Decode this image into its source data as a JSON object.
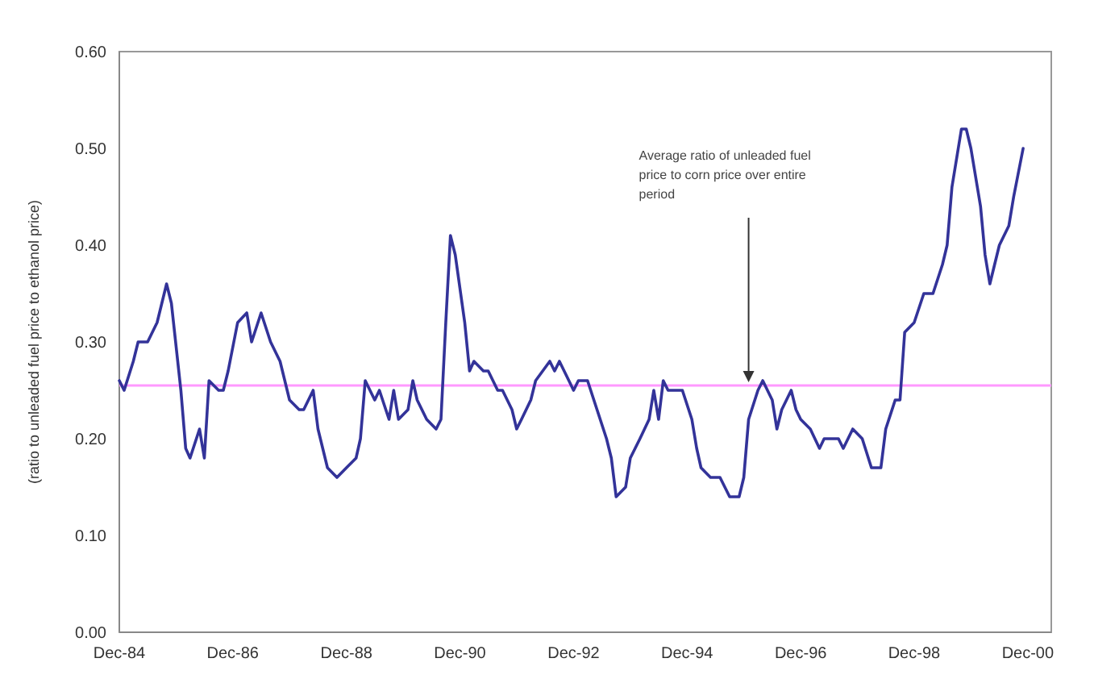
{
  "chart_data": {
    "type": "line",
    "ylabel": "(ratio to unleaded fuel price to ethanol price)",
    "x": [
      "1984-12",
      "1985-01",
      "1985-03",
      "1985-04",
      "1985-06",
      "1985-08",
      "1985-10",
      "1985-11",
      "1986-01",
      "1986-02",
      "1986-03",
      "1986-05",
      "1986-06",
      "1986-07",
      "1986-09",
      "1986-10",
      "1986-11",
      "1987-01",
      "1987-03",
      "1987-04",
      "1987-06",
      "1987-08",
      "1987-10",
      "1987-12",
      "1988-02",
      "1988-03",
      "1988-05",
      "1988-06",
      "1988-08",
      "1988-10",
      "1988-12",
      "1989-02",
      "1989-03",
      "1989-04",
      "1989-06",
      "1989-07",
      "1989-09",
      "1989-10",
      "1989-11",
      "1990-01",
      "1990-02",
      "1990-03",
      "1990-05",
      "1990-07",
      "1990-08",
      "1990-09",
      "1990-10",
      "1990-11",
      "1991-01",
      "1991-02",
      "1991-03",
      "1991-05",
      "1991-06",
      "1991-08",
      "1991-09",
      "1991-11",
      "1991-12",
      "1992-01",
      "1992-03",
      "1992-04",
      "1992-07",
      "1992-08",
      "1992-09",
      "1992-11",
      "1992-12",
      "1993-01",
      "1993-03",
      "1993-05",
      "1993-07",
      "1993-08",
      "1993-09",
      "1993-11",
      "1993-12",
      "1994-02",
      "1994-04",
      "1994-05",
      "1994-06",
      "1994-07",
      "1994-08",
      "1994-10",
      "1994-11",
      "1995-01",
      "1995-02",
      "1995-03",
      "1995-05",
      "1995-07",
      "1995-08",
      "1995-09",
      "1995-11",
      "1995-12",
      "1996-01",
      "1996-03",
      "1996-04",
      "1996-06",
      "1996-07",
      "1996-08",
      "1996-10",
      "1996-11",
      "1996-12",
      "1997-02",
      "1997-04",
      "1997-05",
      "1997-06",
      "1997-08",
      "1997-09",
      "1997-11",
      "1998-01",
      "1998-03",
      "1998-05",
      "1998-06",
      "1998-08",
      "1998-09",
      "1998-10",
      "1998-12",
      "1999-02",
      "1999-04",
      "1999-06",
      "1999-07",
      "1999-08",
      "1999-10",
      "1999-11",
      "1999-12",
      "2000-02",
      "2000-03",
      "2000-04",
      "2000-06",
      "2000-08",
      "2000-09",
      "2000-11"
    ],
    "series": [
      {
        "color": "#333399",
        "values": [
          0.26,
          0.25,
          0.28,
          0.3,
          0.3,
          0.32,
          0.36,
          0.34,
          0.25,
          0.19,
          0.18,
          0.21,
          0.18,
          0.26,
          0.25,
          0.25,
          0.27,
          0.32,
          0.33,
          0.3,
          0.33,
          0.3,
          0.28,
          0.24,
          0.23,
          0.23,
          0.25,
          0.21,
          0.17,
          0.16,
          0.17,
          0.18,
          0.2,
          0.26,
          0.24,
          0.25,
          0.22,
          0.25,
          0.22,
          0.23,
          0.26,
          0.24,
          0.22,
          0.21,
          0.22,
          0.32,
          0.41,
          0.39,
          0.32,
          0.27,
          0.28,
          0.27,
          0.27,
          0.25,
          0.25,
          0.23,
          0.21,
          0.22,
          0.24,
          0.26,
          0.28,
          0.27,
          0.28,
          0.26,
          0.25,
          0.26,
          0.26,
          0.23,
          0.2,
          0.18,
          0.14,
          0.15,
          0.18,
          0.2,
          0.22,
          0.25,
          0.22,
          0.26,
          0.25,
          0.25,
          0.25,
          0.22,
          0.19,
          0.17,
          0.16,
          0.16,
          0.15,
          0.14,
          0.14,
          0.16,
          0.22,
          0.25,
          0.26,
          0.24,
          0.21,
          0.23,
          0.25,
          0.23,
          0.22,
          0.21,
          0.19,
          0.2,
          0.2,
          0.2,
          0.19,
          0.21,
          0.2,
          0.17,
          0.17,
          0.21,
          0.24,
          0.24,
          0.31,
          0.32,
          0.35,
          0.35,
          0.38,
          0.4,
          0.46,
          0.52,
          0.52,
          0.5,
          0.44,
          0.39,
          0.36,
          0.4,
          0.42,
          0.45,
          0.5
        ]
      }
    ],
    "xlim": [
      "1984-12",
      "2001-05"
    ],
    "xticks": [
      {
        "value": "1984-12",
        "label": "Dec-84"
      },
      {
        "value": "1986-12",
        "label": "Dec-86"
      },
      {
        "value": "1988-12",
        "label": "Dec-88"
      },
      {
        "value": "1990-12",
        "label": "Dec-90"
      },
      {
        "value": "1992-12",
        "label": "Dec-92"
      },
      {
        "value": "1994-12",
        "label": "Dec-94"
      },
      {
        "value": "1996-12",
        "label": "Dec-96"
      },
      {
        "value": "1998-12",
        "label": "Dec-98"
      },
      {
        "value": "2000-12",
        "label": "Dec-00"
      }
    ],
    "ylim": [
      0,
      0.6
    ],
    "yticks": [
      {
        "value": 0,
        "label": "0.00"
      },
      {
        "value": 0.1,
        "label": "0.10"
      },
      {
        "value": 0.2,
        "label": "0.20"
      },
      {
        "value": 0.3,
        "label": "0.30"
      },
      {
        "value": 0.4,
        "label": "0.40"
      },
      {
        "value": 0.5,
        "label": "0.50"
      },
      {
        "value": 0.6,
        "label": "0.60"
      }
    ],
    "ref_lines": [
      {
        "axis": "y",
        "value": 0.255,
        "color": "#ff99ff"
      }
    ],
    "annotations": [
      {
        "text": "Average ratio of unleaded fuel price to corn price over entire period",
        "x": "1996-01",
        "y": 0.255
      }
    ],
    "grid": false,
    "line_style": "solid"
  }
}
